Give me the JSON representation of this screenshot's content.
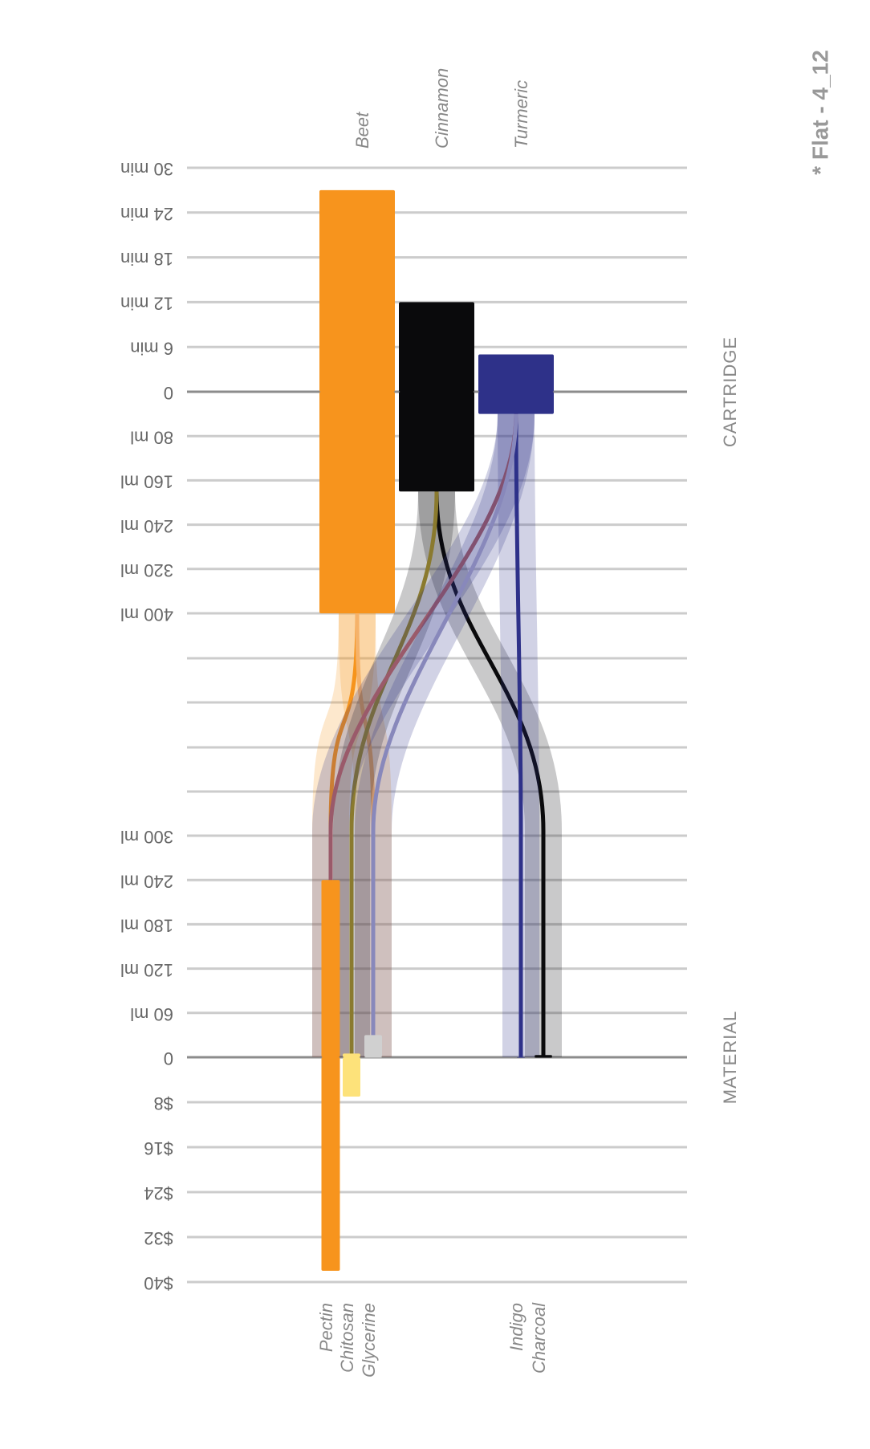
{
  "chart_data": {
    "type": "dual-stage-bar",
    "title": "* Flat - 4_12",
    "cartridge": {
      "label": "CARTRIDGE",
      "time_lim": [
        0,
        30
      ],
      "time_ticks": [
        0,
        {
          "value": 6,
          "label": "6 min"
        },
        {
          "value": 12,
          "label": "12 min"
        },
        {
          "value": 18,
          "label": "18 min"
        },
        {
          "value": 24,
          "label": "24 min"
        },
        {
          "value": 30,
          "label": "30 min"
        }
      ],
      "volume_lim": [
        0,
        400
      ],
      "volume_ticks": [
        {
          "value": 80,
          "label": "80 ml"
        },
        {
          "value": 160,
          "label": "160 ml"
        },
        {
          "value": 240,
          "label": "240 ml"
        },
        {
          "value": 320,
          "label": "320 ml"
        },
        {
          "value": 400,
          "label": "400 ml"
        }
      ],
      "items": [
        {
          "name": "Beet",
          "color": "#f7941d",
          "time": 27,
          "volume": 400
        },
        {
          "name": "Cinnamon",
          "color": "#0a0a0c",
          "time": 12,
          "volume": 180
        },
        {
          "name": "Turmeric",
          "color": "#2e3189",
          "time": 5,
          "volume": 40
        }
      ]
    },
    "material": {
      "label": "MATERIAL",
      "volume_lim": [
        0,
        300
      ],
      "volume_ticks": [
        0,
        {
          "value": 60,
          "label": "60 ml"
        },
        {
          "value": 120,
          "label": "120 ml"
        },
        {
          "value": 180,
          "label": "180 ml"
        },
        {
          "value": 240,
          "label": "240 ml"
        },
        {
          "value": 300,
          "label": "300 ml"
        }
      ],
      "cost_lim": [
        0,
        40
      ],
      "cost_ticks": [
        {
          "value": 8,
          "label": "$8"
        },
        {
          "value": 16,
          "label": "$16"
        },
        {
          "value": 24,
          "label": "$24"
        },
        {
          "value": 32,
          "label": "$32"
        },
        {
          "value": 40,
          "label": "$40"
        }
      ],
      "items": [
        {
          "name": "Pectin",
          "color": "#f7941d",
          "volume": 240,
          "cost": 38
        },
        {
          "name": "Chitosan",
          "color": "#fde27a",
          "volume": 5,
          "cost": 7
        },
        {
          "name": "Glycerine",
          "color": "#d0d0d0",
          "volume": 30,
          "cost": 0
        },
        {
          "name": "Indigo",
          "color": "#2e3189",
          "volume": 0,
          "cost": 0
        },
        {
          "name": "Charcoal",
          "color": "#0a0a0c",
          "volume": 3,
          "cost": 0
        }
      ]
    }
  }
}
